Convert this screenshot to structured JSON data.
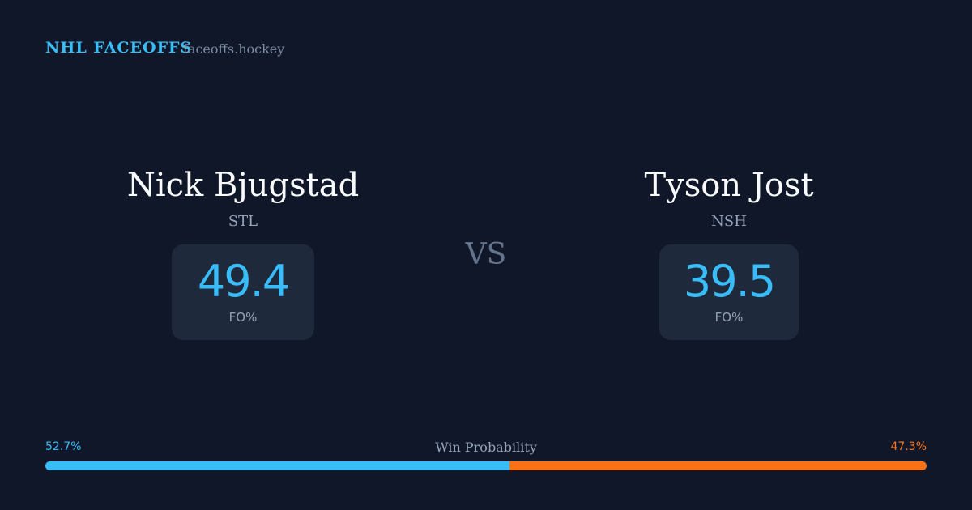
{
  "header": {
    "title": "NHL FACEOFFS",
    "site": "faceoffs.hockey"
  },
  "players": [
    {
      "name": "Nick Bjugstad",
      "team": "STL",
      "value": 49.4,
      "label": "FO%"
    },
    {
      "name": "Tyson Jost",
      "team": "NSH",
      "value": 39.5,
      "label": "FO%"
    }
  ],
  "vs": "VS",
  "win_probability": {
    "title": "Win Probability",
    "left": {
      "value": 52.7,
      "label": "52.7%",
      "color": "#38bdf8"
    },
    "right": {
      "value": 47.3,
      "label": "47.3%",
      "color": "#f97316"
    }
  }
}
